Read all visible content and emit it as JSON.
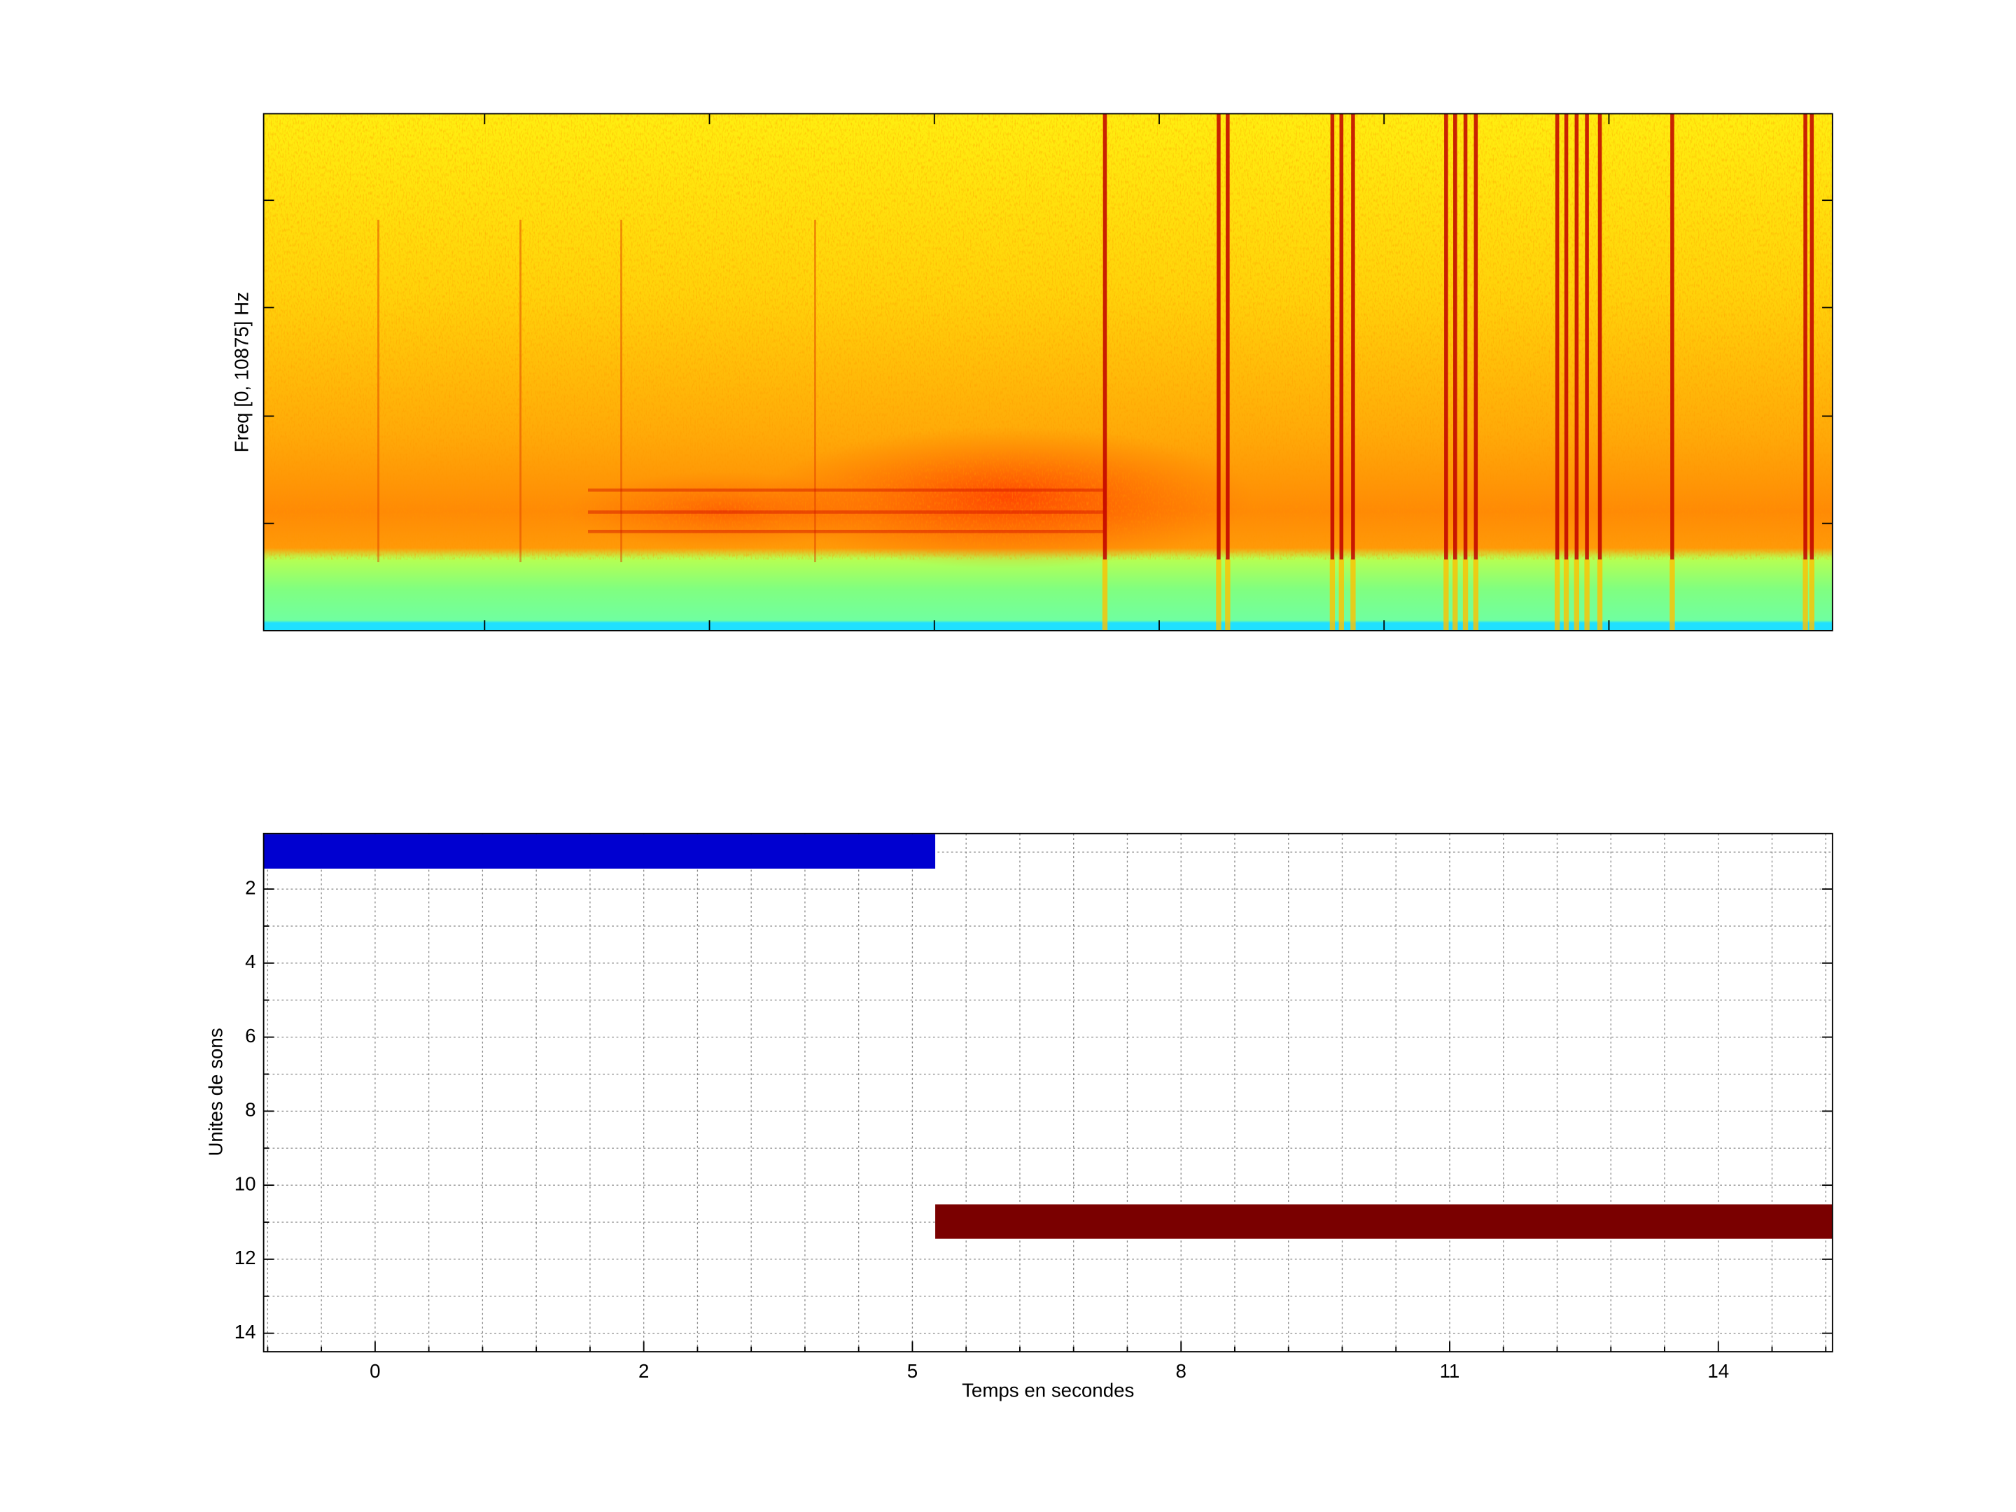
{
  "chart_data": [
    {
      "type": "spectrogram",
      "ylabel": "Freq [0, 10875] Hz"
    },
    {
      "type": "segments",
      "xlabel": "Temps en secondes",
      "ylabel": "Unites de sons",
      "xlim": [
        -0.83,
        10.85
      ],
      "xticks": [
        {
          "value": 0,
          "label": "0"
        },
        {
          "value": 2,
          "label": "2"
        },
        {
          "value": 4,
          "label": "5"
        },
        {
          "value": 6,
          "label": "8"
        },
        {
          "value": 8,
          "label": "11"
        },
        {
          "value": 10,
          "label": "14"
        }
      ],
      "ylim": [
        0.5,
        14.5
      ],
      "yreverse": true,
      "yticks": [
        2,
        4,
        6,
        8,
        10,
        12,
        14
      ],
      "grid": true,
      "segments": [
        {
          "unit": 1,
          "start": -0.83,
          "end": 4.17,
          "color": "#0000d0"
        },
        {
          "unit": 11,
          "start": 4.17,
          "end": 10.85,
          "color": "#7a0000"
        }
      ]
    }
  ]
}
